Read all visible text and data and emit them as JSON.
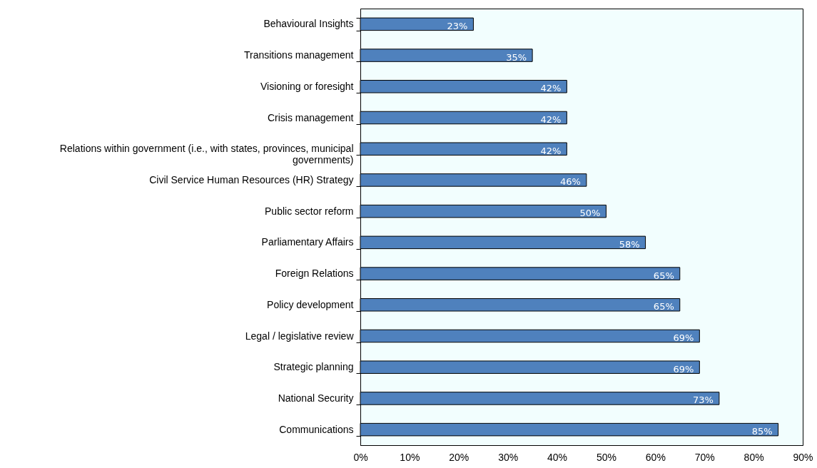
{
  "chart_data": {
    "type": "bar",
    "orientation": "horizontal",
    "grid": false,
    "value_labels": [
      "23%",
      "35%",
      "42%",
      "42%",
      "42%",
      "46%",
      "50%",
      "58%",
      "65%",
      "65%",
      "69%",
      "69%",
      "73%",
      "85%"
    ],
    "categories": [
      "Behavioural Insights",
      "Transitions management",
      "Visioning or foresight",
      "Crisis management",
      "Relations within government (i.e., with states, provinces, municipal governments)",
      "Civil Service Human Resources (HR) Strategy",
      "Public sector reform",
      "Parliamentary Affairs",
      "Foreign Relations",
      "Policy development",
      "Legal / legislative review",
      "Strategic planning",
      "National Security",
      "Communications"
    ],
    "values": [
      23,
      35,
      42,
      42,
      42,
      46,
      50,
      58,
      65,
      65,
      69,
      69,
      73,
      85
    ],
    "color": "#4f81bd",
    "xlim": [
      0,
      90
    ],
    "xticks": [
      {
        "value": 0,
        "label": "0%"
      },
      {
        "value": 10,
        "label": "10%"
      },
      {
        "value": 20,
        "label": "20%"
      },
      {
        "value": 30,
        "label": "30%"
      },
      {
        "value": 40,
        "label": "40%"
      },
      {
        "value": 50,
        "label": "50%"
      },
      {
        "value": 60,
        "label": "60%"
      },
      {
        "value": 70,
        "label": "70%"
      },
      {
        "value": 80,
        "label": "80%"
      },
      {
        "value": 90,
        "label": "90%"
      }
    ]
  }
}
